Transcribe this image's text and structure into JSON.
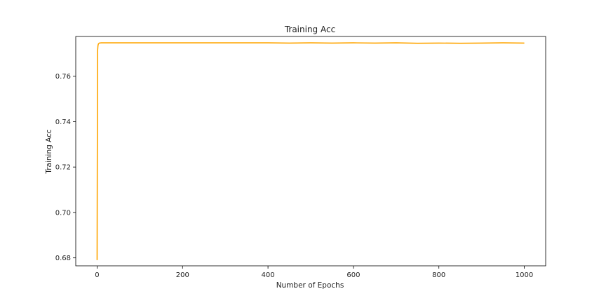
{
  "chart_data": {
    "type": "line",
    "title": "Training Acc",
    "xlabel": "Number of Epochs",
    "ylabel": "Training Acc",
    "xlim": [
      -50,
      1050
    ],
    "ylim": [
      0.6765,
      0.7775
    ],
    "xticks": [
      0,
      200,
      400,
      600,
      800,
      1000
    ],
    "yticks": [
      0.68,
      0.7,
      0.72,
      0.74,
      0.76
    ],
    "ytick_labels": [
      "0.68",
      "0.70",
      "0.72",
      "0.74",
      "0.76"
    ],
    "grid": false,
    "legend": "none",
    "series": [
      {
        "color": "#FFA500",
        "x": [
          0,
          1,
          2,
          3,
          5,
          10,
          50,
          100,
          200,
          300,
          400,
          450,
          500,
          550,
          600,
          650,
          700,
          750,
          800,
          850,
          900,
          950,
          1000
        ],
        "y": [
          0.679,
          0.771,
          0.7735,
          0.7742,
          0.7746,
          0.7747,
          0.7747,
          0.7747,
          0.7747,
          0.7747,
          0.7747,
          0.7746,
          0.7747,
          0.7746,
          0.7747,
          0.7746,
          0.7747,
          0.7745,
          0.7746,
          0.7745,
          0.7746,
          0.7747,
          0.7746
        ]
      }
    ]
  }
}
